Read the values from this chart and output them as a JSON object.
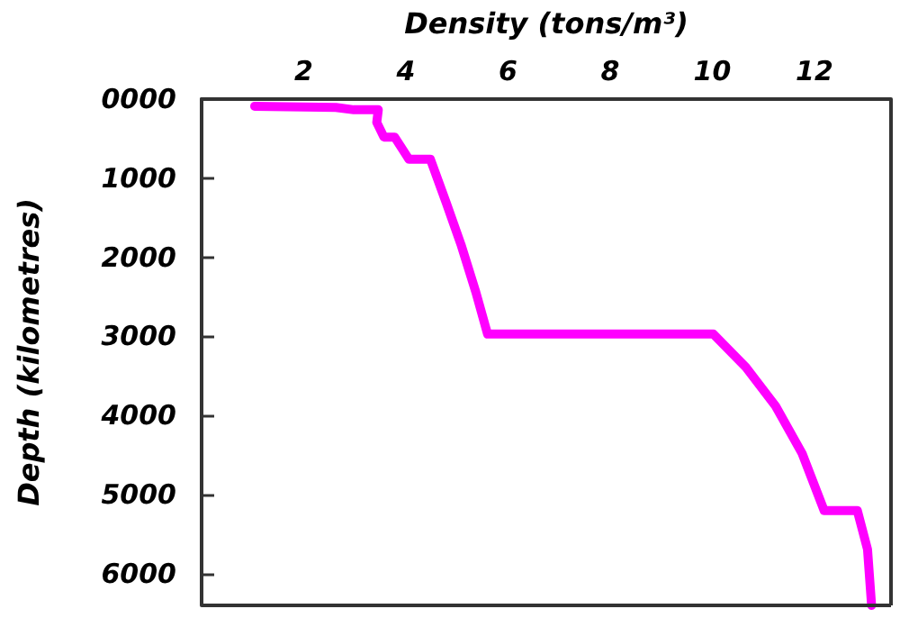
{
  "chart_data": {
    "type": "line",
    "xlabel": "Density (tons/m³)",
    "ylabel": "Depth (kilometres)",
    "xlim": [
      0,
      13.5
    ],
    "xticks": [
      2,
      4,
      6,
      8,
      10,
      12
    ],
    "ylim": [
      6400,
      0
    ],
    "yticks": [
      {
        "value": 0,
        "label": "0000"
      },
      1000,
      2000,
      3000,
      4000,
      5000,
      6000
    ],
    "grid": false,
    "marker": "none",
    "line_style": "solid",
    "series": [
      {
        "color": "#ff00ff",
        "x": [
          1.04,
          2.63,
          2.98,
          3.46,
          3.43,
          3.57,
          3.78,
          4.01,
          4.06,
          4.48,
          4.79,
          5.08,
          5.37,
          5.6,
          10.02,
          10.66,
          11.24,
          11.76,
          12.19,
          12.84,
          13.04,
          13.12
        ],
        "values": [
          90,
          105,
          135,
          135,
          295,
          480,
          480,
          710,
          760,
          760,
          1310,
          1840,
          2440,
          2970,
          2970,
          3390,
          3880,
          4480,
          5200,
          5200,
          5690,
          6400
        ]
      }
    ]
  }
}
